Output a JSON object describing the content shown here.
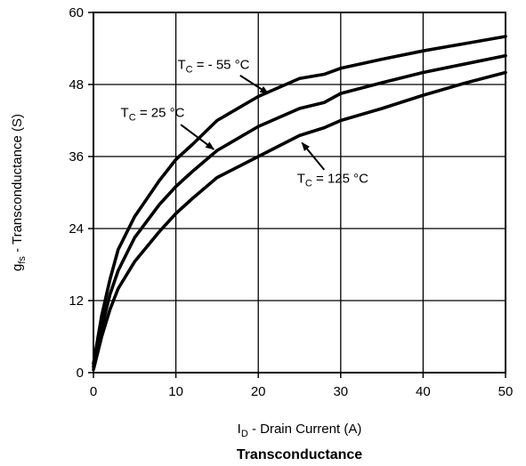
{
  "chart_data": {
    "type": "line",
    "title": "Transconductance",
    "xlabel": {
      "main": "I",
      "sub": "D",
      "rest": " - Drain Current (A)"
    },
    "ylabel": {
      "main": "g",
      "sub": "fs",
      "rest": " - Transconductance (S)"
    },
    "xlim": [
      0,
      50
    ],
    "ylim": [
      0,
      60
    ],
    "xticks": [
      0,
      10,
      20,
      30,
      40,
      50
    ],
    "yticks": [
      0,
      12,
      24,
      36,
      48,
      60
    ],
    "grid": true,
    "colors": {
      "line": "#000000",
      "grid": "#000000",
      "background": "#ffffff"
    },
    "series": [
      {
        "name": "- 55 °C",
        "label_main": "T",
        "label_sub": "C",
        "label_rest": " = - 55 °C",
        "x": [
          0,
          1,
          2,
          3,
          5,
          8,
          10,
          12,
          15,
          20,
          25,
          28,
          30,
          35,
          40,
          45,
          50
        ],
        "y": [
          1.5,
          9.5,
          15.5,
          20.5,
          26,
          32,
          35.5,
          38,
          42,
          46,
          49,
          49.7,
          50.7,
          52.2,
          53.6,
          54.8,
          56
        ]
      },
      {
        "name": "25 °C",
        "label_main": "T",
        "label_sub": "C",
        "label_rest": " = 25 °C",
        "x": [
          0,
          1,
          2,
          3,
          5,
          8,
          10,
          12,
          15,
          20,
          25,
          28,
          30,
          35,
          40,
          45,
          50
        ],
        "y": [
          1,
          7.5,
          13,
          17,
          22.5,
          28,
          31,
          33.5,
          37,
          41,
          44,
          45,
          46.5,
          48.3,
          50,
          51.4,
          52.8
        ]
      },
      {
        "name": "125 °C",
        "label_main": "T",
        "label_sub": "C",
        "label_rest": " = 125 °C",
        "x": [
          0,
          1,
          2,
          3,
          5,
          8,
          10,
          12,
          15,
          20,
          25,
          28,
          30,
          35,
          40,
          45,
          50
        ],
        "y": [
          0.5,
          6,
          10.5,
          14,
          18.5,
          23.5,
          26.5,
          29,
          32.5,
          36,
          39.5,
          40.8,
          42,
          44,
          46.2,
          48.2,
          50
        ]
      }
    ],
    "annotations": [
      {
        "series": 0,
        "text_x": 10.2,
        "text_y": 50.6,
        "arrow_from": [
          17.8,
          49.5
        ],
        "arrow_to": [
          21.2,
          46.5
        ]
      },
      {
        "series": 1,
        "text_x": 3.3,
        "text_y": 42.6,
        "arrow_from": [
          10.6,
          41.3
        ],
        "arrow_to": [
          14.6,
          37.2
        ]
      },
      {
        "series": 2,
        "text_x": 24.7,
        "text_y": 31.6,
        "arrow_from": [
          28.0,
          33.8
        ],
        "arrow_to": [
          25.3,
          38.3
        ]
      }
    ]
  }
}
